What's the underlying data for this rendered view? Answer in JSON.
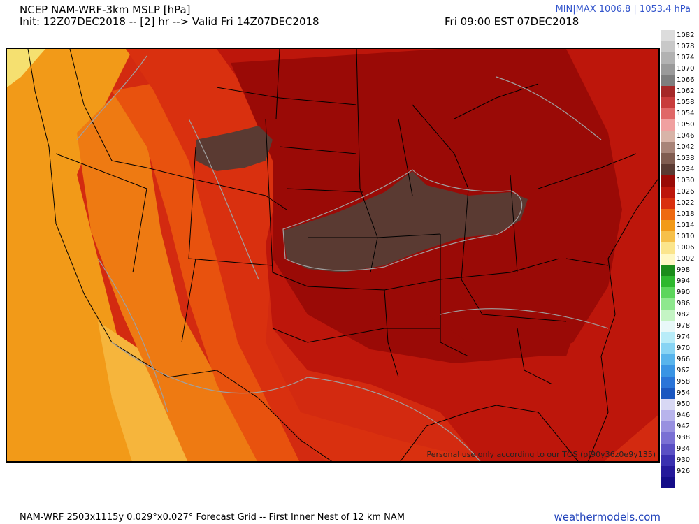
{
  "header": {
    "title": "NCEP NAM-WRF-3km MSLP [hPa]",
    "init_line": "Init: 12Z07DEC2018 -- [2] hr --> Valid Fri 14Z07DEC2018",
    "valid_local": "Fri 09:00 EST 07DEC2018",
    "minmax": "MIN|MAX 1006.8 | 1053.4 hPa"
  },
  "map": {
    "tos_note": "Personal use only according to our TOS (pf90y36z0e9y135)",
    "region_colors": {
      "pacific_far": "#f5e070",
      "pacific": "#f29a18",
      "west_coast": "#ee7a12",
      "desert_sw": "#f6b53c",
      "great_basin": "#e8520e",
      "rockies": "#d9300f",
      "plains": "#bd160b",
      "midwest": "#9a0a06",
      "high_center": "#5a3a32",
      "gulf": "#d32a10",
      "borders": "#000000",
      "isobars": "#a0a0a0"
    }
  },
  "colorbar": {
    "levels": [
      {
        "label": "1082",
        "color": "#dcdcdc"
      },
      {
        "label": "1078",
        "color": "#c8c8c8"
      },
      {
        "label": "1074",
        "color": "#b2b2b2"
      },
      {
        "label": "1070",
        "color": "#9a9a9a"
      },
      {
        "label": "1066",
        "color": "#7e7e7e"
      },
      {
        "label": "1062",
        "color": "#a52828"
      },
      {
        "label": "1058",
        "color": "#c83c3c"
      },
      {
        "label": "1054",
        "color": "#e06868"
      },
      {
        "label": "1050",
        "color": "#f0a0a0"
      },
      {
        "label": "1046",
        "color": "#d8b4a8"
      },
      {
        "label": "1042",
        "color": "#a88478"
      },
      {
        "label": "1038",
        "color": "#805c50"
      },
      {
        "label": "1034",
        "color": "#5a3a32"
      },
      {
        "label": "1030",
        "color": "#9a0a06"
      },
      {
        "label": "1026",
        "color": "#bd160b"
      },
      {
        "label": "1022",
        "color": "#d9300f"
      },
      {
        "label": "1018",
        "color": "#ee6a12"
      },
      {
        "label": "1014",
        "color": "#f29a18"
      },
      {
        "label": "1010",
        "color": "#f6c04a"
      },
      {
        "label": "1006",
        "color": "#fbe58c"
      },
      {
        "label": "1002",
        "color": "#fff8c4"
      },
      {
        "label": "998",
        "color": "#1a8c1a"
      },
      {
        "label": "994",
        "color": "#2eb82e"
      },
      {
        "label": "990",
        "color": "#5cd65c"
      },
      {
        "label": "986",
        "color": "#8ee88e"
      },
      {
        "label": "982",
        "color": "#c4f4c4"
      },
      {
        "label": "978",
        "color": "#e8f8f8"
      },
      {
        "label": "974",
        "color": "#b8ecf8"
      },
      {
        "label": "970",
        "color": "#88d4f4"
      },
      {
        "label": "966",
        "color": "#58b4ec"
      },
      {
        "label": "962",
        "color": "#3a94e4"
      },
      {
        "label": "958",
        "color": "#2a74d8"
      },
      {
        "label": "954",
        "color": "#1a56c0"
      },
      {
        "label": "950",
        "color": "#d8d8f4"
      },
      {
        "label": "946",
        "color": "#b8b4ec"
      },
      {
        "label": "942",
        "color": "#9890e0"
      },
      {
        "label": "938",
        "color": "#7a70d4"
      },
      {
        "label": "934",
        "color": "#5a50c4"
      },
      {
        "label": "930",
        "color": "#3a30b0"
      },
      {
        "label": "926",
        "color": "#24189a"
      },
      {
        "label": "",
        "color": "#140c88"
      }
    ]
  },
  "footer": {
    "left": "NAM-WRF 2503x1115y 0.029°x0.027° Forecast Grid -- First Inner Nest of 12 km NAM",
    "right": "weathermodels.com"
  }
}
